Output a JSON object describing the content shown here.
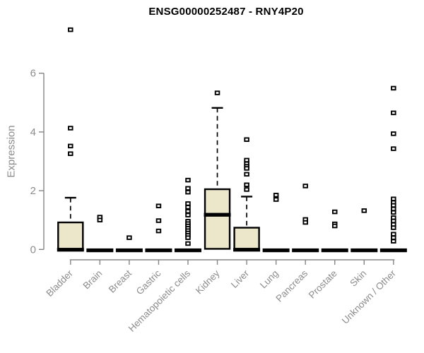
{
  "chart_data": {
    "type": "boxplot",
    "title": "ENSG00000252487 - RNY4P20",
    "ylabel": "Expression",
    "xlabel": "",
    "ylim": [
      0,
      7.6
    ],
    "yticks": [
      0,
      2,
      4,
      6
    ],
    "grid": false,
    "legend": "none",
    "box_fill": "#ECE6CA",
    "box_stroke": "#000000",
    "axis_color": "#858585",
    "tick_label_color": "#8c8c8c",
    "title_color": "#000000",
    "categories": [
      {
        "name": "Bladder",
        "box": {
          "q1": 0,
          "median": 0.02,
          "q3": 0.92,
          "whisker_low": 0,
          "whisker_high": 1.76
        },
        "outliers": [
          7.48,
          4.13,
          3.52,
          3.26
        ]
      },
      {
        "name": "Brain",
        "box": {
          "q1": 0,
          "median": 0,
          "q3": 0,
          "whisker_low": 0,
          "whisker_high": 0
        },
        "outliers": [
          1.1,
          1.0
        ]
      },
      {
        "name": "Breast",
        "box": {
          "q1": 0,
          "median": 0,
          "q3": 0,
          "whisker_low": 0,
          "whisker_high": 0
        },
        "outliers": [
          0.4
        ]
      },
      {
        "name": "Gastric",
        "box": {
          "q1": 0,
          "median": 0,
          "q3": 0,
          "whisker_low": 0,
          "whisker_high": 0
        },
        "outliers": [
          1.48,
          0.98,
          0.63
        ]
      },
      {
        "name": "Hematopoietic cells",
        "box": {
          "q1": 0,
          "median": 0,
          "q3": 0,
          "whisker_low": 0,
          "whisker_high": 0
        },
        "outliers": [
          2.36,
          2.08,
          1.95,
          1.56,
          1.44,
          1.3,
          1.17,
          0.96,
          0.88,
          0.8,
          0.72,
          0.64,
          0.56,
          0.48,
          0.4,
          0.2
        ]
      },
      {
        "name": "Kidney",
        "box": {
          "q1": 0.02,
          "median": 1.21,
          "q3": 2.05,
          "whisker_low": 0,
          "whisker_high": 4.82
        },
        "outliers": [
          5.33
        ]
      },
      {
        "name": "Liver",
        "box": {
          "q1": 0,
          "median": 0.02,
          "q3": 0.74,
          "whisker_low": 0,
          "whisker_high": 1.8
        },
        "outliers": [
          3.74,
          3.04,
          2.92,
          2.83,
          2.76,
          2.56,
          2.2,
          2.04
        ]
      },
      {
        "name": "Lung",
        "box": {
          "q1": 0,
          "median": 0,
          "q3": 0,
          "whisker_low": 0,
          "whisker_high": 0
        },
        "outliers": [
          1.85,
          1.7
        ]
      },
      {
        "name": "Pancreas",
        "box": {
          "q1": 0,
          "median": 0,
          "q3": 0,
          "whisker_low": 0,
          "whisker_high": 0
        },
        "outliers": [
          2.16,
          1.02,
          0.92
        ]
      },
      {
        "name": "Prostate",
        "box": {
          "q1": 0,
          "median": 0,
          "q3": 0,
          "whisker_low": 0,
          "whisker_high": 0
        },
        "outliers": [
          1.28,
          0.87,
          0.8
        ]
      },
      {
        "name": "Skin",
        "box": {
          "q1": 0,
          "median": 0,
          "q3": 0,
          "whisker_low": 0,
          "whisker_high": 0
        },
        "outliers": [
          1.32
        ]
      },
      {
        "name": "Unknown / Other",
        "box": {
          "q1": 0,
          "median": 0,
          "q3": 0,
          "whisker_low": 0,
          "whisker_high": 0
        },
        "outliers": [
          5.49,
          4.65,
          3.94,
          3.43,
          1.72,
          1.6,
          1.5,
          1.38,
          1.26,
          1.08,
          0.97,
          0.85,
          0.74,
          0.52,
          0.4,
          0.28
        ]
      }
    ]
  }
}
